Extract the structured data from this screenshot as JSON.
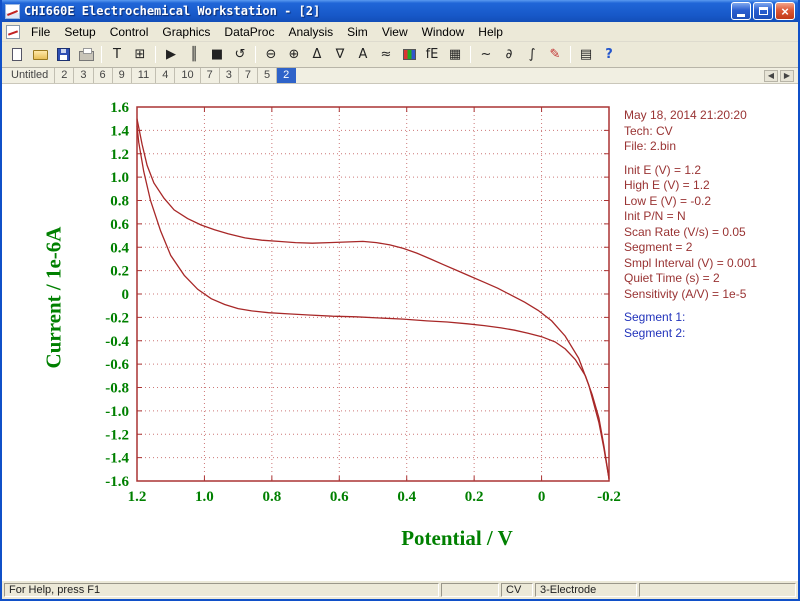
{
  "window": {
    "title": "CHI660E Electrochemical Workstation - [2]"
  },
  "titlebar_icons": {
    "minimize": "minimize",
    "maximize": "maximize",
    "close": "×"
  },
  "menus": [
    "File",
    "Setup",
    "Control",
    "Graphics",
    "DataProc",
    "Analysis",
    "Sim",
    "View",
    "Window",
    "Help"
  ],
  "toolbar": {
    "items": [
      {
        "name": "new",
        "kind": "css"
      },
      {
        "name": "open",
        "kind": "css"
      },
      {
        "name": "save",
        "kind": "css"
      },
      {
        "name": "print",
        "kind": "css"
      },
      {
        "name": "sep1",
        "kind": "sep"
      },
      {
        "name": "text-tool",
        "glyph": "T"
      },
      {
        "name": "data-table",
        "glyph": "⊞"
      },
      {
        "name": "sep2",
        "kind": "sep"
      },
      {
        "name": "run",
        "glyph": "▶"
      },
      {
        "name": "pause",
        "glyph": "║"
      },
      {
        "name": "stop",
        "glyph": "■"
      },
      {
        "name": "reverse-scan",
        "glyph": "↺"
      },
      {
        "name": "sep3",
        "kind": "sep"
      },
      {
        "name": "zoom-out",
        "glyph": "⊖"
      },
      {
        "name": "zoom-in",
        "glyph": "⊕"
      },
      {
        "name": "peak-anodic",
        "glyph": "Δ"
      },
      {
        "name": "peak-cathodic",
        "glyph": "∇"
      },
      {
        "name": "auto-scale",
        "glyph": "A"
      },
      {
        "name": "overlay-plot",
        "glyph": "≈"
      },
      {
        "name": "color-palette",
        "kind": "css"
      },
      {
        "name": "ie-display",
        "glyph": "fE"
      },
      {
        "name": "graph-options",
        "glyph": "▦"
      },
      {
        "name": "sep4",
        "kind": "sep"
      },
      {
        "name": "smooth",
        "glyph": "~"
      },
      {
        "name": "derivative",
        "glyph": "∂"
      },
      {
        "name": "integrate",
        "glyph": "∫"
      },
      {
        "name": "annotate-pen",
        "glyph": "✎",
        "cls": "c-red"
      },
      {
        "name": "sep5",
        "kind": "sep"
      },
      {
        "name": "data-listing",
        "glyph": "▤"
      },
      {
        "name": "context-help",
        "glyph": "?",
        "cls": "c-blue"
      }
    ]
  },
  "tabs": {
    "items": [
      "Untitled",
      "2",
      "3",
      "6",
      "9",
      "11",
      "4",
      "10",
      "7",
      "3",
      "7",
      "5",
      "2"
    ],
    "active_index": 12,
    "scroll_left": "◀",
    "scroll_right": "▶"
  },
  "chart_data": {
    "type": "line",
    "title": "",
    "xlabel": "Potential / V",
    "ylabel": "Current / 1e-6A",
    "xlim": [
      1.2,
      -0.2
    ],
    "ylim": [
      -1.6,
      1.6
    ],
    "x_ticks": [
      1.2,
      1.0,
      0.8,
      0.6,
      0.4,
      0.2,
      0,
      -0.2
    ],
    "x_tick_labels": [
      "1.2",
      "1.0",
      "0.8",
      "0.6",
      "0.4",
      "0.2",
      "0",
      "-0.2"
    ],
    "y_ticks": [
      1.6,
      1.4,
      1.2,
      1.0,
      0.8,
      0.6,
      0.4,
      0.2,
      0,
      -0.2,
      -0.4,
      -0.6,
      -0.8,
      -1.0,
      -1.2,
      -1.4,
      -1.6
    ],
    "y_tick_labels": [
      "1.6",
      "1.4",
      "1.2",
      "1.0",
      "0.8",
      "0.6",
      "0.4",
      "0.2",
      "0",
      "-0.2",
      "-0.4",
      "-0.6",
      "-0.8",
      "-1.0",
      "-1.2",
      "-1.4",
      "-1.6"
    ],
    "grid": true,
    "line_color": "#a82828",
    "series": [
      {
        "name": "Segment 1",
        "points": [
          [
            1.2,
            1.5
          ],
          [
            1.185,
            1.28
          ],
          [
            1.17,
            1.1
          ],
          [
            1.15,
            0.95
          ],
          [
            1.12,
            0.82
          ],
          [
            1.09,
            0.72
          ],
          [
            1.05,
            0.645
          ],
          [
            1.01,
            0.59
          ],
          [
            0.97,
            0.55
          ],
          [
            0.93,
            0.515
          ],
          [
            0.88,
            0.48
          ],
          [
            0.83,
            0.46
          ],
          [
            0.78,
            0.45
          ],
          [
            0.73,
            0.44
          ],
          [
            0.68,
            0.435
          ],
          [
            0.63,
            0.44
          ],
          [
            0.58,
            0.445
          ],
          [
            0.53,
            0.45
          ],
          [
            0.49,
            0.44
          ],
          [
            0.45,
            0.42
          ],
          [
            0.41,
            0.39
          ],
          [
            0.37,
            0.35
          ],
          [
            0.33,
            0.3
          ],
          [
            0.29,
            0.25
          ],
          [
            0.25,
            0.2
          ],
          [
            0.21,
            0.15
          ],
          [
            0.17,
            0.1
          ],
          [
            0.13,
            0.05
          ],
          [
            0.09,
            -0.01
          ],
          [
            0.05,
            -0.07
          ],
          [
            0.01,
            -0.14
          ],
          [
            -0.03,
            -0.23
          ],
          [
            -0.07,
            -0.36
          ],
          [
            -0.11,
            -0.55
          ],
          [
            -0.14,
            -0.78
          ],
          [
            -0.17,
            -1.1
          ],
          [
            -0.185,
            -1.32
          ],
          [
            -0.2,
            -1.58
          ]
        ]
      },
      {
        "name": "Segment 2",
        "points": [
          [
            -0.2,
            -1.58
          ],
          [
            -0.185,
            -1.3
          ],
          [
            -0.17,
            -1.06
          ],
          [
            -0.15,
            -0.86
          ],
          [
            -0.13,
            -0.7
          ],
          [
            -0.1,
            -0.56
          ],
          [
            -0.07,
            -0.47
          ],
          [
            -0.04,
            -0.41
          ],
          [
            0.0,
            -0.365
          ],
          [
            0.04,
            -0.335
          ],
          [
            0.08,
            -0.31
          ],
          [
            0.12,
            -0.29
          ],
          [
            0.17,
            -0.27
          ],
          [
            0.22,
            -0.255
          ],
          [
            0.28,
            -0.24
          ],
          [
            0.34,
            -0.23
          ],
          [
            0.41,
            -0.215
          ],
          [
            0.48,
            -0.205
          ],
          [
            0.55,
            -0.195
          ],
          [
            0.62,
            -0.19
          ],
          [
            0.69,
            -0.18
          ],
          [
            0.75,
            -0.17
          ],
          [
            0.81,
            -0.16
          ],
          [
            0.86,
            -0.145
          ],
          [
            0.9,
            -0.125
          ],
          [
            0.94,
            -0.09
          ],
          [
            0.98,
            -0.04
          ],
          [
            1.02,
            0.04
          ],
          [
            1.06,
            0.16
          ],
          [
            1.1,
            0.33
          ],
          [
            1.13,
            0.54
          ],
          [
            1.16,
            0.8
          ],
          [
            1.18,
            1.05
          ],
          [
            1.195,
            1.3
          ],
          [
            1.2,
            1.44
          ]
        ]
      }
    ]
  },
  "info": {
    "datetime": "May 18, 2014  21:20:20",
    "tech": "Tech: CV",
    "file": "File: 2.bin",
    "params": [
      "Init E (V) = 1.2",
      "High E (V) = 1.2",
      "Low E (V) = -0.2",
      "Init P/N = N",
      "Scan Rate (V/s) = 0.05",
      "Segment = 2",
      "Smpl Interval (V) = 0.001",
      "Quiet Time (s) = 2",
      "Sensitivity (A/V) = 1e-5"
    ],
    "segments": [
      "Segment 1:",
      "Segment 2:"
    ]
  },
  "statusbar": {
    "help": "For Help, press F1",
    "tech": "CV",
    "mode": "3-Electrode"
  }
}
